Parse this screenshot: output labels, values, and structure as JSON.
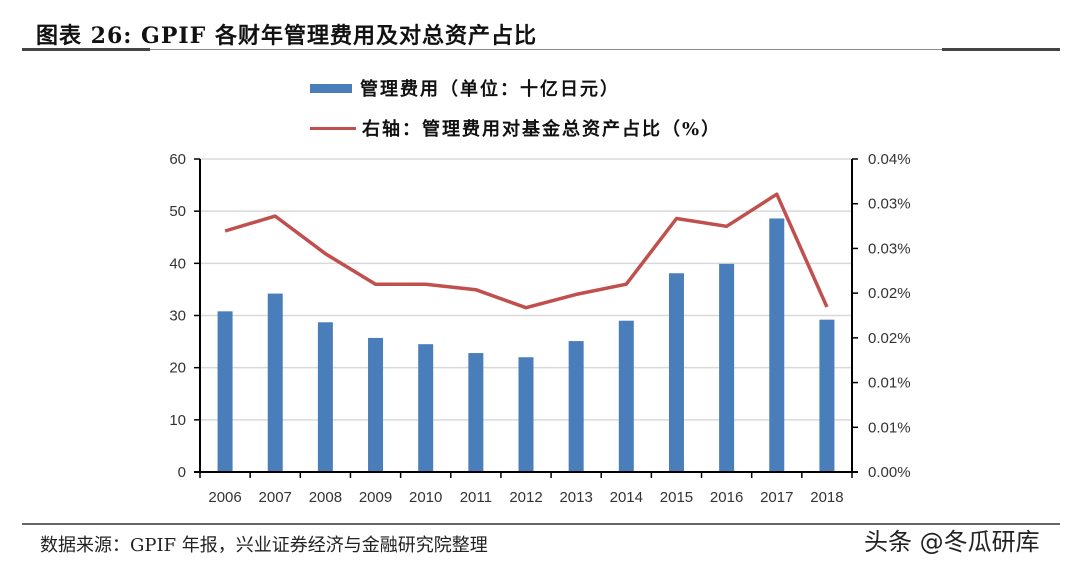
{
  "header": {
    "title": "图表 26: GPIF 各财年管理费用及对总资产占比"
  },
  "legend": {
    "bar_label": "管理费用（单位：十亿日元）",
    "line_label": "右轴：管理费用对基金总资产占比（%）"
  },
  "footer": {
    "source": "数据来源：GPIF 年报，兴业证券经济与金融研究院整理",
    "watermark": "头条 @冬瓜研库"
  },
  "colors": {
    "bar": "#4a7ebb",
    "line": "#c0504d",
    "grid": "#d9d9d9",
    "axis": "#000000"
  },
  "chart_data": {
    "type": "bar",
    "title": "GPIF 各财年管理费用及对总资产占比",
    "categories": [
      "2006",
      "2007",
      "2008",
      "2009",
      "2010",
      "2011",
      "2012",
      "2013",
      "2014",
      "2015",
      "2016",
      "2017",
      "2018"
    ],
    "series": [
      {
        "name": "管理费用（单位：十亿日元）",
        "type": "bar",
        "axis": "left",
        "values": [
          30.8,
          34.2,
          28.7,
          25.7,
          24.5,
          22.8,
          22.0,
          25.1,
          29.0,
          38.1,
          39.9,
          48.6,
          29.2
        ]
      },
      {
        "name": "右轴：管理费用对基金总资产占比（%）",
        "type": "line",
        "axis": "right",
        "values": [
          0.0308,
          0.0327,
          0.0279,
          0.024,
          0.024,
          0.0233,
          0.021,
          0.0227,
          0.024,
          0.0324,
          0.0314,
          0.0355,
          0.0211
        ]
      }
    ],
    "xlabel": "",
    "ylabel": "",
    "ylim": [
      0,
      60
    ],
    "y_ticks": [
      "0",
      "10",
      "20",
      "30",
      "40",
      "50",
      "60"
    ],
    "y2lim": [
      0,
      0.04
    ],
    "y2_ticks": [
      "0.00%",
      "0.01%",
      "0.01%",
      "0.02%",
      "0.02%",
      "0.03%",
      "0.03%",
      "0.04%"
    ],
    "grid": true,
    "legend_position": "top"
  }
}
